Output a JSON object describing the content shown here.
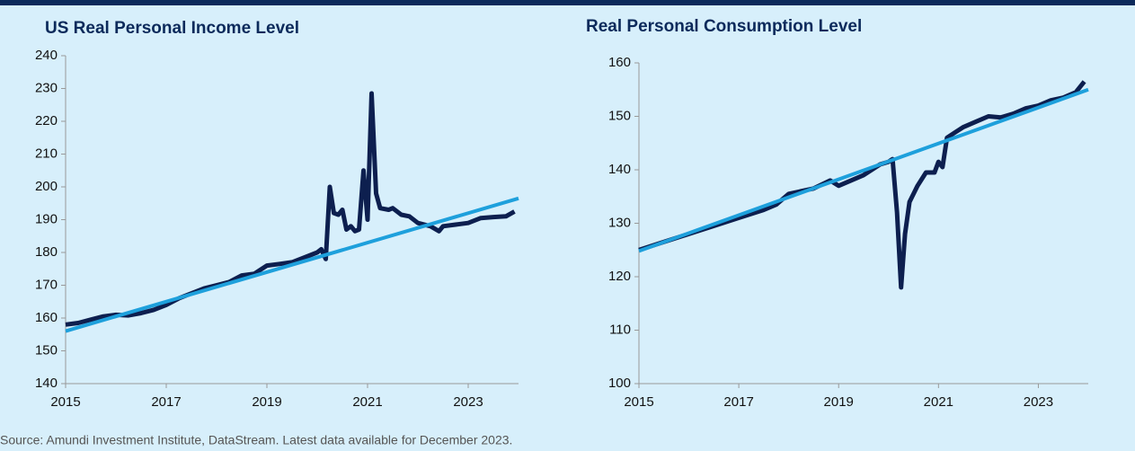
{
  "chart_data": [
    {
      "type": "line",
      "title": "US Real Personal Income Level",
      "xlim": [
        2015,
        2024
      ],
      "xticks": [
        2015,
        2017,
        2019,
        2021,
        2023
      ],
      "ylim": [
        140,
        240
      ],
      "yticks": [
        140,
        150,
        160,
        170,
        180,
        190,
        200,
        210,
        220,
        230,
        240
      ],
      "series": [
        {
          "color": "#0d1f4f",
          "x": [
            2015.0,
            2015.25,
            2015.5,
            2015.75,
            2016.0,
            2016.25,
            2016.5,
            2016.75,
            2017.0,
            2017.25,
            2017.5,
            2017.75,
            2018.0,
            2018.25,
            2018.5,
            2018.75,
            2019.0,
            2019.25,
            2019.5,
            2019.75,
            2020.0,
            2020.08,
            2020.17,
            2020.25,
            2020.33,
            2020.42,
            2020.5,
            2020.58,
            2020.67,
            2020.75,
            2020.83,
            2020.92,
            2021.0,
            2021.08,
            2021.17,
            2021.25,
            2021.42,
            2021.5,
            2021.67,
            2021.83,
            2022.0,
            2022.25,
            2022.42,
            2022.5,
            2022.75,
            2023.0,
            2023.25,
            2023.5,
            2023.75,
            2023.92
          ],
          "values": [
            158,
            158.5,
            159.5,
            160.5,
            161,
            160.8,
            161.5,
            162.5,
            164,
            166,
            167.5,
            169,
            170,
            171,
            173,
            173.5,
            176,
            176.5,
            177,
            178.5,
            180,
            181,
            178,
            200,
            192,
            191.5,
            193,
            187,
            188,
            186.5,
            187,
            205,
            190,
            228.5,
            198,
            193.5,
            193,
            193.5,
            191.5,
            191,
            189,
            188,
            186.5,
            188,
            188.5,
            189,
            190.5,
            190.8,
            191,
            192.5
          ]
        },
        {
          "color": "#1ea0dc",
          "x": [
            2015,
            2024
          ],
          "values": [
            156,
            196.5
          ]
        }
      ]
    },
    {
      "type": "line",
      "title": "Real Personal Consumption Level",
      "xlim": [
        2015,
        2024
      ],
      "xticks": [
        2015,
        2017,
        2019,
        2021,
        2023
      ],
      "ylim": [
        100,
        160
      ],
      "yticks": [
        100,
        110,
        120,
        130,
        140,
        150,
        160
      ],
      "series": [
        {
          "color": "#0d1f4f",
          "x": [
            2015.0,
            2015.5,
            2016.0,
            2016.5,
            2017.0,
            2017.5,
            2017.75,
            2018.0,
            2018.5,
            2018.83,
            2019.0,
            2019.5,
            2019.83,
            2020.0,
            2020.08,
            2020.17,
            2020.25,
            2020.33,
            2020.42,
            2020.58,
            2020.75,
            2020.92,
            2021.0,
            2021.08,
            2021.17,
            2021.33,
            2021.5,
            2021.75,
            2022.0,
            2022.25,
            2022.5,
            2022.75,
            2023.0,
            2023.25,
            2023.5,
            2023.75,
            2023.92
          ],
          "values": [
            125,
            126.5,
            128,
            129.5,
            131,
            132.5,
            133.5,
            135.5,
            136.5,
            138,
            137,
            139,
            141,
            141.5,
            142,
            132,
            118,
            128,
            134,
            137,
            139.5,
            139.5,
            141.5,
            140.5,
            146,
            147,
            148,
            149,
            150,
            149.8,
            150.5,
            151.5,
            152,
            153,
            153.5,
            154.5,
            156.5
          ]
        },
        {
          "color": "#1ea0dc",
          "x": [
            2015,
            2024
          ],
          "values": [
            124.8,
            155
          ]
        }
      ]
    }
  ],
  "note": "Source: Amundi Investment Institute, DataStream. Latest data available for December 2023."
}
